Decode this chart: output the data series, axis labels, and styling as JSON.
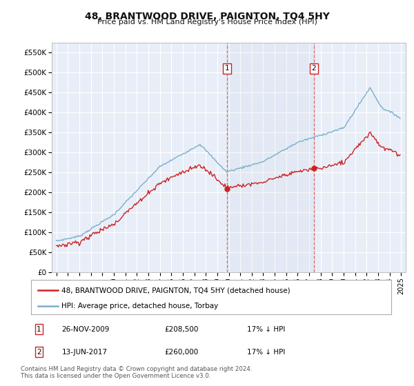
{
  "title": "48, BRANTWOOD DRIVE, PAIGNTON, TQ4 5HY",
  "subtitle": "Price paid vs. HM Land Registry's House Price Index (HPI)",
  "ylim": [
    0,
    575000
  ],
  "yticks": [
    0,
    50000,
    100000,
    150000,
    200000,
    250000,
    300000,
    350000,
    400000,
    450000,
    500000,
    550000
  ],
  "ytick_labels": [
    "£0",
    "£50K",
    "£100K",
    "£150K",
    "£200K",
    "£250K",
    "£300K",
    "£350K",
    "£400K",
    "£450K",
    "£500K",
    "£550K"
  ],
  "background_color": "#ffffff",
  "plot_bg_color": "#e8eef8",
  "grid_color": "#ffffff",
  "hpi_color": "#7aaecc",
  "price_color": "#cc2222",
  "vline_color": "#dd6666",
  "legend_entries": [
    "48, BRANTWOOD DRIVE, PAIGNTON, TQ4 5HY (detached house)",
    "HPI: Average price, detached house, Torbay"
  ],
  "table_rows": [
    [
      "1",
      "26-NOV-2009",
      "£208,500",
      "17% ↓ HPI"
    ],
    [
      "2",
      "13-JUN-2017",
      "£260,000",
      "17% ↓ HPI"
    ]
  ],
  "footnote": "Contains HM Land Registry data © Crown copyright and database right 2024.\nThis data is licensed under the Open Government Licence v3.0."
}
